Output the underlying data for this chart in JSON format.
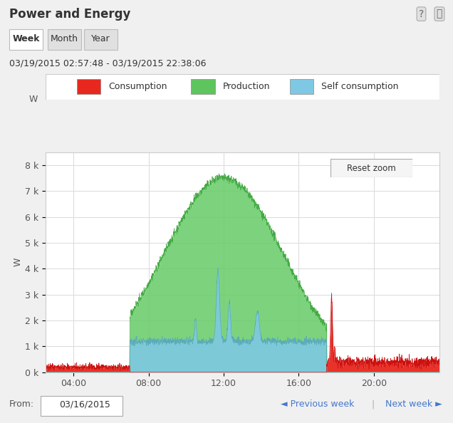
{
  "title": "Power and Energy",
  "subtitle": "03/19/2015 02:57:48 - 03/19/2015 22:38:06",
  "ylabel": "W",
  "tabs": [
    "Week",
    "Month",
    "Year"
  ],
  "active_tab": "Week",
  "from_label": "From:",
  "from_date": "03/16/2015",
  "prev_week": "◄ Previous week",
  "next_week": "Next week ►",
  "reset_zoom": "Reset zoom",
  "xticks": [
    4,
    8,
    12,
    16,
    20
  ],
  "xtick_labels": [
    "04:00",
    "08:00",
    "12:00",
    "16:00",
    "20:00"
  ],
  "yticks": [
    0,
    1000,
    2000,
    3000,
    4000,
    5000,
    6000,
    7000,
    8000
  ],
  "ytick_labels": [
    "0 k",
    "1 k",
    "2 k",
    "3 k",
    "4 k",
    "5 k",
    "6 k",
    "7 k",
    "8 k"
  ],
  "ylim": [
    0,
    8500
  ],
  "xlim": [
    2.5,
    23.5
  ],
  "legend_labels": [
    "Consumption",
    "Production",
    "Self consumption"
  ],
  "legend_colors": [
    "#e8281e",
    "#5ec45e",
    "#7ec8e3"
  ],
  "bg_color": "#f4f4f4",
  "chart_bg": "#ffffff",
  "grid_color": "#dddddd",
  "panel_bg": "#f0f0f0",
  "title_bg": "#e8e8e8"
}
